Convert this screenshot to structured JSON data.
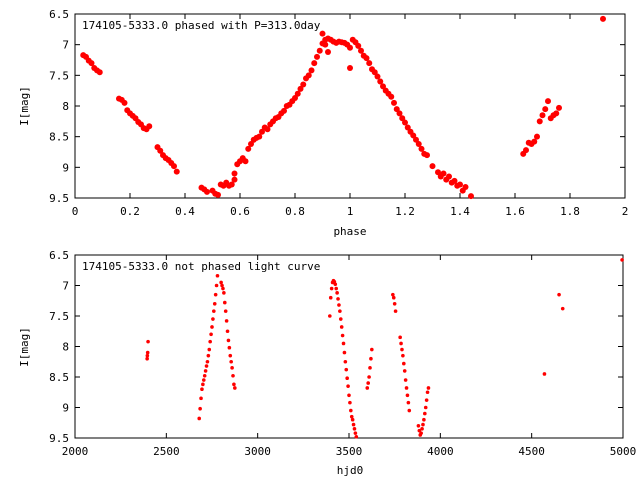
{
  "chart_data": [
    {
      "type": "scatter",
      "title": "174105-5333.0 phased with P=313.0day",
      "xlabel": "phase",
      "ylabel": "I[mag]",
      "xlim": [
        0,
        2
      ],
      "ylim": [
        6.5,
        9.5
      ],
      "y_inverted": true,
      "xticks": [
        "0",
        "0.2",
        "0.4",
        "0.6",
        "0.8",
        "1",
        "1.2",
        "1.4",
        "1.6",
        "1.8",
        "2"
      ],
      "yticks": [
        "6.5",
        "7",
        "7.5",
        "8",
        "8.5",
        "9",
        "9.5"
      ],
      "grid": false,
      "marker_color": "#ff0000",
      "series": [
        {
          "points": [
            [
              0.03,
              7.17
            ],
            [
              0.04,
              7.2
            ],
            [
              0.05,
              7.26
            ],
            [
              0.06,
              7.3
            ],
            [
              0.07,
              7.38
            ],
            [
              0.08,
              7.42
            ],
            [
              0.09,
              7.45
            ],
            [
              0.16,
              7.88
            ],
            [
              0.17,
              7.9
            ],
            [
              0.18,
              7.95
            ],
            [
              0.19,
              8.07
            ],
            [
              0.2,
              8.12
            ],
            [
              0.21,
              8.16
            ],
            [
              0.22,
              8.2
            ],
            [
              0.23,
              8.26
            ],
            [
              0.24,
              8.3
            ],
            [
              0.25,
              8.36
            ],
            [
              0.26,
              8.38
            ],
            [
              0.27,
              8.33
            ],
            [
              0.3,
              8.67
            ],
            [
              0.31,
              8.73
            ],
            [
              0.32,
              8.8
            ],
            [
              0.33,
              8.85
            ],
            [
              0.34,
              8.88
            ],
            [
              0.35,
              8.93
            ],
            [
              0.36,
              8.98
            ],
            [
              0.37,
              9.07
            ],
            [
              0.46,
              9.33
            ],
            [
              0.47,
              9.36
            ],
            [
              0.48,
              9.4
            ],
            [
              0.5,
              9.38
            ],
            [
              0.51,
              9.43
            ],
            [
              0.52,
              9.45
            ],
            [
              0.53,
              9.28
            ],
            [
              0.54,
              9.3
            ],
            [
              0.55,
              9.25
            ],
            [
              0.56,
              9.3
            ],
            [
              0.57,
              9.28
            ],
            [
              0.58,
              9.1
            ],
            [
              0.58,
              9.2
            ],
            [
              0.59,
              8.95
            ],
            [
              0.6,
              8.9
            ],
            [
              0.61,
              8.85
            ],
            [
              0.62,
              8.9
            ],
            [
              0.63,
              8.7
            ],
            [
              0.64,
              8.62
            ],
            [
              0.65,
              8.55
            ],
            [
              0.66,
              8.52
            ],
            [
              0.67,
              8.5
            ],
            [
              0.68,
              8.42
            ],
            [
              0.69,
              8.35
            ],
            [
              0.7,
              8.38
            ],
            [
              0.71,
              8.3
            ],
            [
              0.72,
              8.25
            ],
            [
              0.73,
              8.2
            ],
            [
              0.74,
              8.18
            ],
            [
              0.75,
              8.12
            ],
            [
              0.76,
              8.08
            ],
            [
              0.77,
              8.0
            ],
            [
              0.78,
              7.98
            ],
            [
              0.79,
              7.92
            ],
            [
              0.8,
              7.87
            ],
            [
              0.81,
              7.8
            ],
            [
              0.82,
              7.72
            ],
            [
              0.83,
              7.65
            ],
            [
              0.84,
              7.55
            ],
            [
              0.85,
              7.5
            ],
            [
              0.86,
              7.42
            ],
            [
              0.87,
              7.3
            ],
            [
              0.88,
              7.2
            ],
            [
              0.89,
              7.1
            ],
            [
              0.9,
              6.98
            ],
            [
              0.91,
              6.92
            ],
            [
              0.92,
              6.9
            ],
            [
              0.93,
              6.92
            ],
            [
              0.94,
              6.95
            ],
            [
              0.95,
              6.97
            ],
            [
              0.9,
              6.82
            ],
            [
              0.91,
              7.0
            ],
            [
              0.92,
              7.12
            ],
            [
              0.96,
              6.95
            ],
            [
              0.97,
              6.96
            ],
            [
              0.98,
              6.97
            ],
            [
              0.99,
              7.0
            ],
            [
              1.0,
              7.05
            ],
            [
              1.0,
              7.38
            ],
            [
              1.01,
              6.92
            ],
            [
              1.02,
              6.96
            ],
            [
              1.03,
              7.02
            ],
            [
              1.04,
              7.1
            ],
            [
              1.05,
              7.18
            ],
            [
              1.06,
              7.22
            ],
            [
              1.07,
              7.3
            ],
            [
              1.08,
              7.4
            ],
            [
              1.09,
              7.45
            ],
            [
              1.1,
              7.52
            ],
            [
              1.11,
              7.6
            ],
            [
              1.12,
              7.68
            ],
            [
              1.13,
              7.75
            ],
            [
              1.14,
              7.8
            ],
            [
              1.15,
              7.85
            ],
            [
              1.16,
              7.95
            ],
            [
              1.17,
              8.05
            ],
            [
              1.18,
              8.12
            ],
            [
              1.19,
              8.2
            ],
            [
              1.2,
              8.27
            ],
            [
              1.21,
              8.35
            ],
            [
              1.22,
              8.42
            ],
            [
              1.23,
              8.48
            ],
            [
              1.24,
              8.55
            ],
            [
              1.25,
              8.62
            ],
            [
              1.26,
              8.7
            ],
            [
              1.27,
              8.78
            ],
            [
              1.28,
              8.8
            ],
            [
              1.3,
              8.98
            ],
            [
              1.32,
              9.08
            ],
            [
              1.33,
              9.15
            ],
            [
              1.34,
              9.1
            ],
            [
              1.35,
              9.2
            ],
            [
              1.36,
              9.15
            ],
            [
              1.37,
              9.25
            ],
            [
              1.38,
              9.22
            ],
            [
              1.39,
              9.3
            ],
            [
              1.4,
              9.28
            ],
            [
              1.41,
              9.38
            ],
            [
              1.42,
              9.32
            ],
            [
              1.44,
              9.47
            ],
            [
              1.63,
              8.78
            ],
            [
              1.64,
              8.72
            ],
            [
              1.65,
              8.6
            ],
            [
              1.66,
              8.62
            ],
            [
              1.67,
              8.58
            ],
            [
              1.68,
              8.5
            ],
            [
              1.69,
              8.25
            ],
            [
              1.7,
              8.15
            ],
            [
              1.71,
              8.05
            ],
            [
              1.72,
              7.92
            ],
            [
              1.73,
              8.2
            ],
            [
              1.74,
              8.15
            ],
            [
              1.75,
              8.12
            ],
            [
              1.76,
              8.03
            ],
            [
              1.92,
              6.58
            ]
          ]
        }
      ]
    },
    {
      "type": "scatter",
      "title": "174105-5333.0 not phased light curve",
      "xlabel": "hjd0",
      "ylabel": "I[mag]",
      "xlim": [
        2000,
        5000
      ],
      "ylim": [
        6.5,
        9.5
      ],
      "y_inverted": true,
      "xticks": [
        "2000",
        "2500",
        "3000",
        "3500",
        "4000",
        "4500",
        "5000"
      ],
      "yticks": [
        "6.5",
        "7",
        "7.5",
        "8",
        "8.5",
        "9",
        "9.5"
      ],
      "grid": false,
      "marker_color": "#ff0000",
      "series": [
        {
          "points": [
            [
              2395,
              8.2
            ],
            [
              2396,
              8.15
            ],
            [
              2398,
              8.1
            ],
            [
              2400,
              7.92
            ],
            [
              2680,
              9.18
            ],
            [
              2685,
              9.02
            ],
            [
              2690,
              8.85
            ],
            [
              2695,
              8.7
            ],
            [
              2700,
              8.62
            ],
            [
              2705,
              8.55
            ],
            [
              2710,
              8.48
            ],
            [
              2715,
              8.4
            ],
            [
              2720,
              8.32
            ],
            [
              2725,
              8.25
            ],
            [
              2730,
              8.15
            ],
            [
              2735,
              8.05
            ],
            [
              2740,
              7.92
            ],
            [
              2745,
              7.8
            ],
            [
              2750,
              7.68
            ],
            [
              2755,
              7.55
            ],
            [
              2760,
              7.42
            ],
            [
              2765,
              7.3
            ],
            [
              2770,
              7.15
            ],
            [
              2775,
              7.0
            ],
            [
              2780,
              6.84
            ],
            [
              2800,
              6.95
            ],
            [
              2805,
              7.0
            ],
            [
              2810,
              7.05
            ],
            [
              2815,
              7.12
            ],
            [
              2820,
              7.28
            ],
            [
              2825,
              7.42
            ],
            [
              2830,
              7.58
            ],
            [
              2835,
              7.75
            ],
            [
              2840,
              7.9
            ],
            [
              2845,
              8.02
            ],
            [
              2850,
              8.15
            ],
            [
              2855,
              8.25
            ],
            [
              2860,
              8.35
            ],
            [
              2865,
              8.48
            ],
            [
              2870,
              8.62
            ],
            [
              2875,
              8.68
            ],
            [
              3395,
              7.5
            ],
            [
              3400,
              7.2
            ],
            [
              3405,
              7.05
            ],
            [
              3410,
              6.95
            ],
            [
              3415,
              6.92
            ],
            [
              3420,
              6.94
            ],
            [
              3425,
              6.98
            ],
            [
              3430,
              7.05
            ],
            [
              3435,
              7.12
            ],
            [
              3440,
              7.22
            ],
            [
              3445,
              7.32
            ],
            [
              3450,
              7.42
            ],
            [
              3455,
              7.55
            ],
            [
              3460,
              7.68
            ],
            [
              3465,
              7.82
            ],
            [
              3470,
              7.95
            ],
            [
              3475,
              8.1
            ],
            [
              3480,
              8.25
            ],
            [
              3485,
              8.38
            ],
            [
              3490,
              8.52
            ],
            [
              3495,
              8.65
            ],
            [
              3500,
              8.8
            ],
            [
              3505,
              8.92
            ],
            [
              3510,
              9.05
            ],
            [
              3515,
              9.15
            ],
            [
              3520,
              9.2
            ],
            [
              3525,
              9.28
            ],
            [
              3530,
              9.35
            ],
            [
              3535,
              9.42
            ],
            [
              3540,
              9.48
            ],
            [
              3600,
              8.68
            ],
            [
              3605,
              8.6
            ],
            [
              3610,
              8.5
            ],
            [
              3615,
              8.35
            ],
            [
              3620,
              8.2
            ],
            [
              3625,
              8.05
            ],
            [
              3740,
              7.15
            ],
            [
              3745,
              7.2
            ],
            [
              3750,
              7.3
            ],
            [
              3755,
              7.42
            ],
            [
              3780,
              7.85
            ],
            [
              3785,
              7.95
            ],
            [
              3790,
              8.05
            ],
            [
              3795,
              8.15
            ],
            [
              3800,
              8.28
            ],
            [
              3805,
              8.4
            ],
            [
              3810,
              8.55
            ],
            [
              3815,
              8.68
            ],
            [
              3820,
              8.8
            ],
            [
              3825,
              8.92
            ],
            [
              3830,
              9.05
            ],
            [
              3880,
              9.3
            ],
            [
              3885,
              9.38
            ],
            [
              3890,
              9.45
            ],
            [
              3895,
              9.42
            ],
            [
              3900,
              9.35
            ],
            [
              3905,
              9.28
            ],
            [
              3910,
              9.2
            ],
            [
              3915,
              9.1
            ],
            [
              3920,
              9.0
            ],
            [
              3925,
              8.88
            ],
            [
              3930,
              8.75
            ],
            [
              3935,
              8.68
            ],
            [
              4570,
              8.45
            ],
            [
              4650,
              7.15
            ],
            [
              4670,
              7.38
            ],
            [
              4995,
              6.58
            ]
          ]
        }
      ]
    }
  ]
}
